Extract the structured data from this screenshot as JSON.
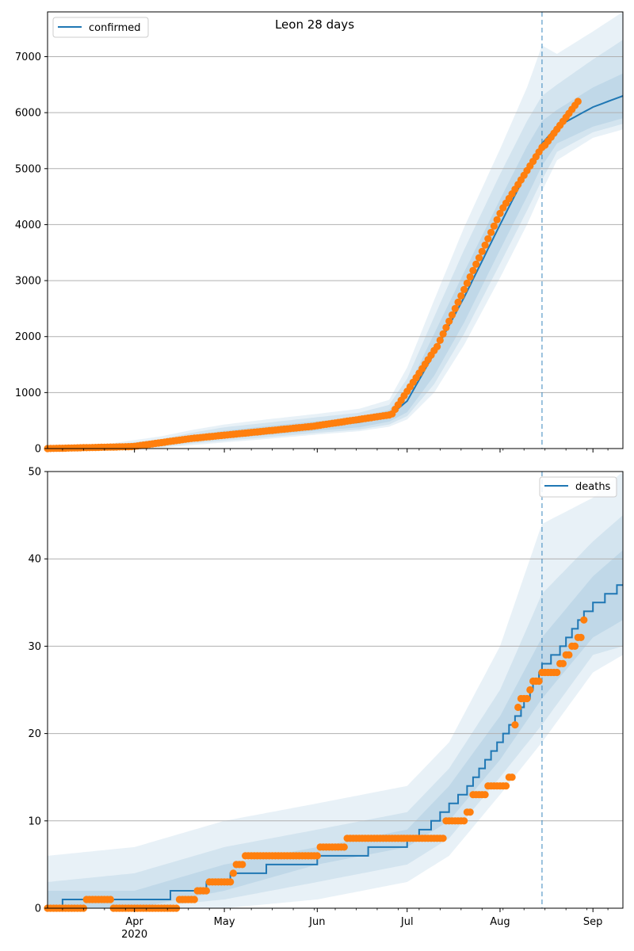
{
  "colors": {
    "model": "#1f77b4",
    "observed": "#ff7f0e",
    "band": "#1f77b4",
    "grid": "#b0b0b0",
    "vline": "#1f77b4"
  },
  "chart_data": [
    {
      "type": "line",
      "title": "Leon 28 days",
      "legend": {
        "label": "confirmed",
        "placement": "top-left"
      },
      "ylim": [
        0,
        7800
      ],
      "yticks": [
        0,
        1000,
        2000,
        3000,
        4000,
        5000,
        6000,
        7000
      ],
      "xlim": [
        "2020-03-03",
        "2020-09-11"
      ],
      "vline": "2020-08-15",
      "grid": "y",
      "model": {
        "name": "confirmed",
        "x": [
          "2020-03-03",
          "2020-03-20",
          "2020-04-10",
          "2020-04-20",
          "2020-05-01",
          "2020-05-15",
          "2020-06-01",
          "2020-06-15",
          "2020-06-25",
          "2020-07-01",
          "2020-07-10",
          "2020-07-20",
          "2020-08-01",
          "2020-08-10",
          "2020-08-15",
          "2020-08-20",
          "2020-09-01",
          "2020-09-11"
        ],
        "y": [
          5,
          15,
          90,
          175,
          250,
          320,
          405,
          470,
          580,
          850,
          1700,
          2700,
          4000,
          4950,
          5450,
          5750,
          6100,
          6300
        ],
        "bands": [
          {
            "lo": [
              0,
              5,
              50,
              120,
              180,
              240,
              320,
              380,
              480,
              650,
              1300,
              2250,
              3550,
              4500,
              5050,
              5450,
              5750,
              5900
            ],
            "hi": [
              10,
              25,
              130,
              230,
              320,
              400,
              490,
              560,
              690,
              1050,
              2050,
              3150,
              4450,
              5400,
              5850,
              6050,
              6450,
              6700
            ]
          },
          {
            "lo": [
              0,
              0,
              30,
              90,
              140,
              200,
              280,
              340,
              430,
              580,
              1150,
              2050,
              3300,
              4250,
              4800,
              5300,
              5650,
              5800
            ],
            "hi": [
              20,
              40,
              170,
              280,
              380,
              460,
              560,
              640,
              780,
              1250,
              2350,
              3550,
              4900,
              5850,
              6300,
              6500,
              6950,
              7300
            ]
          },
          {
            "lo": [
              0,
              0,
              10,
              60,
              110,
              170,
              250,
              310,
              390,
              520,
              1000,
              1850,
              3050,
              4000,
              4600,
              5150,
              5550,
              5700
            ],
            "hi": [
              30,
              60,
              220,
              330,
              430,
              520,
              620,
              710,
              870,
              1450,
              2650,
              3950,
              5350,
              6450,
              7200,
              7050,
              7450,
              7800
            ]
          }
        ]
      },
      "observed": {
        "segments": [
          {
            "start": "2020-03-03",
            "end": "2020-03-31",
            "from": 0,
            "to": 35
          },
          {
            "start": "2020-04-01",
            "end": "2020-04-20",
            "from": 40,
            "to": 180
          },
          {
            "start": "2020-04-21",
            "end": "2020-05-31",
            "from": 185,
            "to": 400
          },
          {
            "start": "2020-06-01",
            "end": "2020-06-25",
            "from": 410,
            "to": 600
          },
          {
            "start": "2020-06-26",
            "end": "2020-07-10",
            "from": 620,
            "to": 1750
          },
          {
            "start": "2020-07-11",
            "end": "2020-08-01",
            "from": 1820,
            "to": 4200
          },
          {
            "start": "2020-08-02",
            "end": "2020-08-15",
            "from": 4300,
            "to": 5380
          },
          {
            "start": "2020-08-16",
            "end": "2020-08-27",
            "from": 5420,
            "to": 6200
          }
        ]
      }
    },
    {
      "type": "line",
      "title": "",
      "legend": {
        "label": "deaths",
        "placement": "top-right"
      },
      "ylim": [
        0,
        50
      ],
      "yticks": [
        0,
        10,
        20,
        30,
        40,
        50
      ],
      "xlim": [
        "2020-03-03",
        "2020-09-11"
      ],
      "xticks": [
        {
          "date": "2020-04-01",
          "label": "Apr",
          "sub": "2020"
        },
        {
          "date": "2020-05-01",
          "label": "May",
          "sub": ""
        },
        {
          "date": "2020-06-01",
          "label": "Jun",
          "sub": ""
        },
        {
          "date": "2020-07-01",
          "label": "Jul",
          "sub": ""
        },
        {
          "date": "2020-08-01",
          "label": "Aug",
          "sub": ""
        },
        {
          "date": "2020-09-01",
          "label": "Sep",
          "sub": ""
        }
      ],
      "vline": "2020-08-15",
      "grid": "y",
      "model": {
        "name": "deaths",
        "steps": [
          [
            "2020-03-03",
            0
          ],
          [
            "2020-03-08",
            1
          ],
          [
            "2020-04-13",
            2
          ],
          [
            "2020-04-25",
            3
          ],
          [
            "2020-05-03",
            4
          ],
          [
            "2020-05-15",
            5
          ],
          [
            "2020-06-01",
            6
          ],
          [
            "2020-06-18",
            7
          ],
          [
            "2020-07-01",
            8
          ],
          [
            "2020-07-05",
            9
          ],
          [
            "2020-07-09",
            10
          ],
          [
            "2020-07-12",
            11
          ],
          [
            "2020-07-15",
            12
          ],
          [
            "2020-07-18",
            13
          ],
          [
            "2020-07-21",
            14
          ],
          [
            "2020-07-23",
            15
          ],
          [
            "2020-07-25",
            16
          ],
          [
            "2020-07-27",
            17
          ],
          [
            "2020-07-29",
            18
          ],
          [
            "2020-07-31",
            19
          ],
          [
            "2020-08-02",
            20
          ],
          [
            "2020-08-04",
            21
          ],
          [
            "2020-08-06",
            22
          ],
          [
            "2020-08-08",
            23
          ],
          [
            "2020-08-09",
            24
          ],
          [
            "2020-08-11",
            25
          ],
          [
            "2020-08-12",
            26
          ],
          [
            "2020-08-14",
            27
          ],
          [
            "2020-08-15",
            28
          ],
          [
            "2020-08-18",
            29
          ],
          [
            "2020-08-21",
            30
          ],
          [
            "2020-08-23",
            31
          ],
          [
            "2020-08-25",
            32
          ],
          [
            "2020-08-27",
            33
          ],
          [
            "2020-08-29",
            34
          ],
          [
            "2020-09-01",
            35
          ],
          [
            "2020-09-05",
            36
          ],
          [
            "2020-09-09",
            37
          ],
          [
            "2020-09-11",
            37
          ]
        ],
        "bands": [
          {
            "x": [
              "2020-03-03",
              "2020-04-01",
              "2020-05-01",
              "2020-06-01",
              "2020-07-01",
              "2020-07-15",
              "2020-08-01",
              "2020-08-15",
              "2020-09-01",
              "2020-09-11"
            ],
            "lo": [
              0,
              0,
              2,
              5,
              7,
              10,
              17,
              24,
              31,
              33
            ],
            "hi": [
              2,
              2,
              5,
              7,
              9,
              14,
              22,
              31,
              38,
              41
            ]
          },
          {
            "x": [
              "2020-03-03",
              "2020-04-01",
              "2020-05-01",
              "2020-06-01",
              "2020-07-01",
              "2020-07-15",
              "2020-08-01",
              "2020-08-15",
              "2020-09-01",
              "2020-09-11"
            ],
            "lo": [
              0,
              0,
              1,
              3,
              5,
              8,
              15,
              21,
              29,
              30
            ],
            "hi": [
              3,
              4,
              7,
              9,
              11,
              16,
              25,
              36,
              42,
              45
            ]
          },
          {
            "x": [
              "2020-03-03",
              "2020-04-01",
              "2020-05-01",
              "2020-06-01",
              "2020-07-01",
              "2020-07-15",
              "2020-08-01",
              "2020-08-15",
              "2020-09-01",
              "2020-09-11"
            ],
            "lo": [
              0,
              0,
              0,
              1,
              3,
              6,
              13,
              19,
              27,
              29
            ],
            "hi": [
              6,
              7,
              10,
              12,
              14,
              19,
              30,
              44,
              47,
              50
            ]
          }
        ]
      },
      "observed": {
        "runs": [
          {
            "start": "2020-03-03",
            "end": "2020-03-15",
            "value": 0
          },
          {
            "start": "2020-03-16",
            "end": "2020-03-24",
            "value": 1
          },
          {
            "start": "2020-03-25",
            "end": "2020-04-15",
            "value": 0
          },
          {
            "start": "2020-04-16",
            "end": "2020-04-21",
            "value": 1
          },
          {
            "start": "2020-04-22",
            "end": "2020-04-25",
            "value": 2
          },
          {
            "start": "2020-04-26",
            "end": "2020-05-03",
            "value": 3
          },
          {
            "start": "2020-05-04",
            "end": "2020-05-04",
            "value": 4
          },
          {
            "start": "2020-05-05",
            "end": "2020-05-07",
            "value": 5
          },
          {
            "start": "2020-05-08",
            "end": "2020-06-01",
            "value": 6
          },
          {
            "start": "2020-06-02",
            "end": "2020-06-10",
            "value": 7
          },
          {
            "start": "2020-06-11",
            "end": "2020-07-13",
            "value": 8
          },
          {
            "start": "2020-07-14",
            "end": "2020-07-20",
            "value": 10
          },
          {
            "start": "2020-07-21",
            "end": "2020-07-22",
            "value": 11
          },
          {
            "start": "2020-07-23",
            "end": "2020-07-27",
            "value": 13
          },
          {
            "start": "2020-07-28",
            "end": "2020-08-03",
            "value": 14
          },
          {
            "start": "2020-08-04",
            "end": "2020-08-05",
            "value": 15
          },
          {
            "start": "2020-08-06",
            "end": "2020-08-06",
            "value": 21
          },
          {
            "start": "2020-08-07",
            "end": "2020-08-07",
            "value": 23
          },
          {
            "start": "2020-08-08",
            "end": "2020-08-10",
            "value": 24
          },
          {
            "start": "2020-08-11",
            "end": "2020-08-11",
            "value": 25
          },
          {
            "start": "2020-08-12",
            "end": "2020-08-14",
            "value": 26
          },
          {
            "start": "2020-08-15",
            "end": "2020-08-20",
            "value": 27
          },
          {
            "start": "2020-08-21",
            "end": "2020-08-22",
            "value": 28
          },
          {
            "start": "2020-08-23",
            "end": "2020-08-24",
            "value": 29
          },
          {
            "start": "2020-08-25",
            "end": "2020-08-26",
            "value": 30
          },
          {
            "start": "2020-08-27",
            "end": "2020-08-28",
            "value": 31
          },
          {
            "start": "2020-08-29",
            "end": "2020-08-29",
            "value": 33
          }
        ]
      }
    }
  ]
}
